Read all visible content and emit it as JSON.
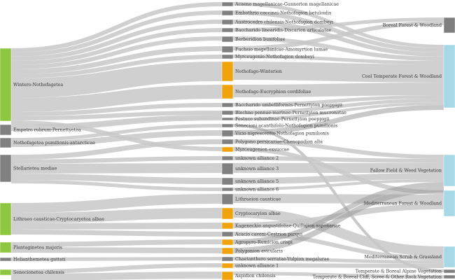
{
  "colors": {
    "class_node": "#8dc63f",
    "class_node_gray": "#808080",
    "alliance_node": "#f0a30a",
    "alliance_node_gray": "#808080",
    "veg_node": "#a6d9e8",
    "veg_node_gray": "#7f7f7f",
    "link": "#c8c8c8",
    "link_dark": "#9a9a9a"
  },
  "classes": [
    {
      "id": "c1",
      "label": "Wintero-Nothofagetea",
      "color": "green"
    },
    {
      "id": "c2",
      "label": "Empetro rubrum-Pernettyetea",
      "color": "gray"
    },
    {
      "id": "c3",
      "label": "Nothofagetea pumilionis-antarcticae",
      "color": "gray"
    },
    {
      "id": "c4",
      "label": "Stellarietea mediae",
      "color": "gray"
    },
    {
      "id": "c5",
      "label": "Lithraeo causticae-Cryptocaryetea albae",
      "color": "green"
    },
    {
      "id": "c6",
      "label": "Plantaginetea majoris",
      "color": "green"
    },
    {
      "id": "c7",
      "label": "Helianthemetea guttati",
      "color": "gray"
    },
    {
      "id": "c8",
      "label": "Senecionetea chilensis",
      "color": "green"
    }
  ],
  "alliances": [
    {
      "id": "a1",
      "label": "Acaeno magellanicae-Gunnerion magellanicae",
      "color": "gray"
    },
    {
      "id": "a2",
      "label": "Embothrio coccinei-Nothofagion betuloidis",
      "color": "gray"
    },
    {
      "id": "a3",
      "label": "Austrocedro chilensis-Nothofagion dombeyi",
      "color": "gray"
    },
    {
      "id": "a4",
      "label": "Baccharido linearidis-Discarion articulatae",
      "color": "gray"
    },
    {
      "id": "a5",
      "label": "Berberidion buxifoliae",
      "color": "gray"
    },
    {
      "id": "a6",
      "label": "Fuchsio magellanicae-Amomyrtion lumae",
      "color": "gray"
    },
    {
      "id": "a7",
      "label": "Myrceugenio-Nothofagion dombeyi",
      "color": "gray"
    },
    {
      "id": "a8",
      "label": "Nothofago-Winterion",
      "color": "orange"
    },
    {
      "id": "a9",
      "label": "Nothofago-Eucryphion cordifoliae",
      "color": "orange"
    },
    {
      "id": "a10",
      "label": "Baccharido umbelliformis-Pernettyion poeppigii",
      "color": "gray"
    },
    {
      "id": "a11",
      "label": "Blechno pennae-marinae-Pernettyion mucronatae",
      "color": "gray"
    },
    {
      "id": "a12",
      "label": "Festuco subandinae-Pernettyion poeppigii",
      "color": "gray"
    },
    {
      "id": "a13",
      "label": "Senecioni acanthifolii-Nothofagion pumilionis",
      "color": "gray"
    },
    {
      "id": "a14",
      "label": "Vicio nigrescentis-Nothofagion pumilionis",
      "color": "gray"
    },
    {
      "id": "a15",
      "label": "Polygono persicariae-Chenopodion albi",
      "color": "gray"
    },
    {
      "id": "a16",
      "label": "Myrceugenion exsuccae",
      "color": "orange"
    },
    {
      "id": "a17",
      "label": "unknown alliance 2",
      "color": "gray"
    },
    {
      "id": "a18",
      "label": "unknown alliance 3",
      "color": "gray"
    },
    {
      "id": "a19",
      "label": "unknown alliance 5",
      "color": "gray"
    },
    {
      "id": "a20",
      "label": "unknown alliance 6",
      "color": "gray"
    },
    {
      "id": "a21",
      "label": "Lithraeion causticae",
      "color": "gray"
    },
    {
      "id": "a22",
      "label": "Cryptocaryion albae",
      "color": "orange"
    },
    {
      "id": "a23",
      "label": "Kageneckio angustifoliae-Quillajion saponariae",
      "color": "orange"
    },
    {
      "id": "a24",
      "label": "Acacio caveni-Cestrion parqui",
      "color": "gray"
    },
    {
      "id": "a25",
      "label": "Agropyro-Rumicion crispi",
      "color": "orange"
    },
    {
      "id": "a26",
      "label": "Polygonion avicularis",
      "color": "orange"
    },
    {
      "id": "a27",
      "label": "Chaetanthero serratae-Vulpion megalurae",
      "color": "gray"
    },
    {
      "id": "a28",
      "label": "unknown alliance 1",
      "color": "orange"
    },
    {
      "id": "a29",
      "label": "Aspidion chilensis",
      "color": "orange"
    }
  ],
  "vegetation": [
    {
      "id": "v1",
      "label": "Boreal Forest & Woodland",
      "color": "gray"
    },
    {
      "id": "v2",
      "label": "Cool Temperate Forest & Woodland",
      "color": "blue"
    },
    {
      "id": "v3",
      "label": "Fallow Field & Weed Vegetation",
      "color": "blue"
    },
    {
      "id": "v4",
      "label": "Mediterranean Forest & Woodland",
      "color": "blue"
    },
    {
      "id": "v5",
      "label": "Mediterranean Scrub & Grassland",
      "color": "blue"
    },
    {
      "id": "v6",
      "label": "Temperate & Boreal Alpine Vegetation",
      "color": "gray"
    },
    {
      "id": "v7",
      "label": "Temperate & Boreal Cliff, Scree & Other Rock Vegetation",
      "color": "gray"
    }
  ]
}
